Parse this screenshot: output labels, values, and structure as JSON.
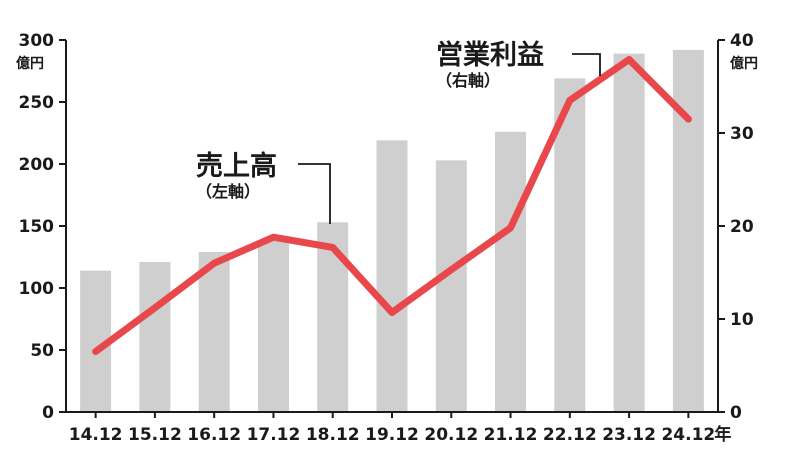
{
  "chart_data": {
    "type": "bar+line",
    "categories": [
      "14.12",
      "15.12",
      "16.12",
      "17.12",
      "18.12",
      "19.12",
      "20.12",
      "21.12",
      "22.12",
      "23.12",
      "24.12"
    ],
    "x_suffix": "年",
    "left_axis": {
      "unit": "億円",
      "ylim": [
        0,
        300
      ],
      "ticks": [
        "0",
        "50",
        "100",
        "150",
        "200",
        "250",
        "300"
      ]
    },
    "right_axis": {
      "unit": "億円",
      "ylim": [
        0,
        40
      ],
      "ticks": [
        "0",
        "10",
        "20",
        "30",
        "40"
      ]
    },
    "series": [
      {
        "name": "売上高",
        "axis_note": "（左軸）",
        "type": "bar",
        "axis": "left",
        "color": "#cfcfcf",
        "values": [
          114,
          121,
          129,
          138,
          153,
          219,
          203,
          226,
          269,
          289,
          292
        ]
      },
      {
        "name": "営業利益",
        "axis_note": "（右軸）",
        "type": "line",
        "axis": "right",
        "color": "#e8474c",
        "values": [
          6.5,
          11.2,
          16.0,
          18.8,
          17.7,
          10.7,
          15.3,
          19.8,
          33.5,
          37.9,
          31.5
        ]
      }
    ],
    "grid": false,
    "axis_color": "#1a1a1a"
  }
}
